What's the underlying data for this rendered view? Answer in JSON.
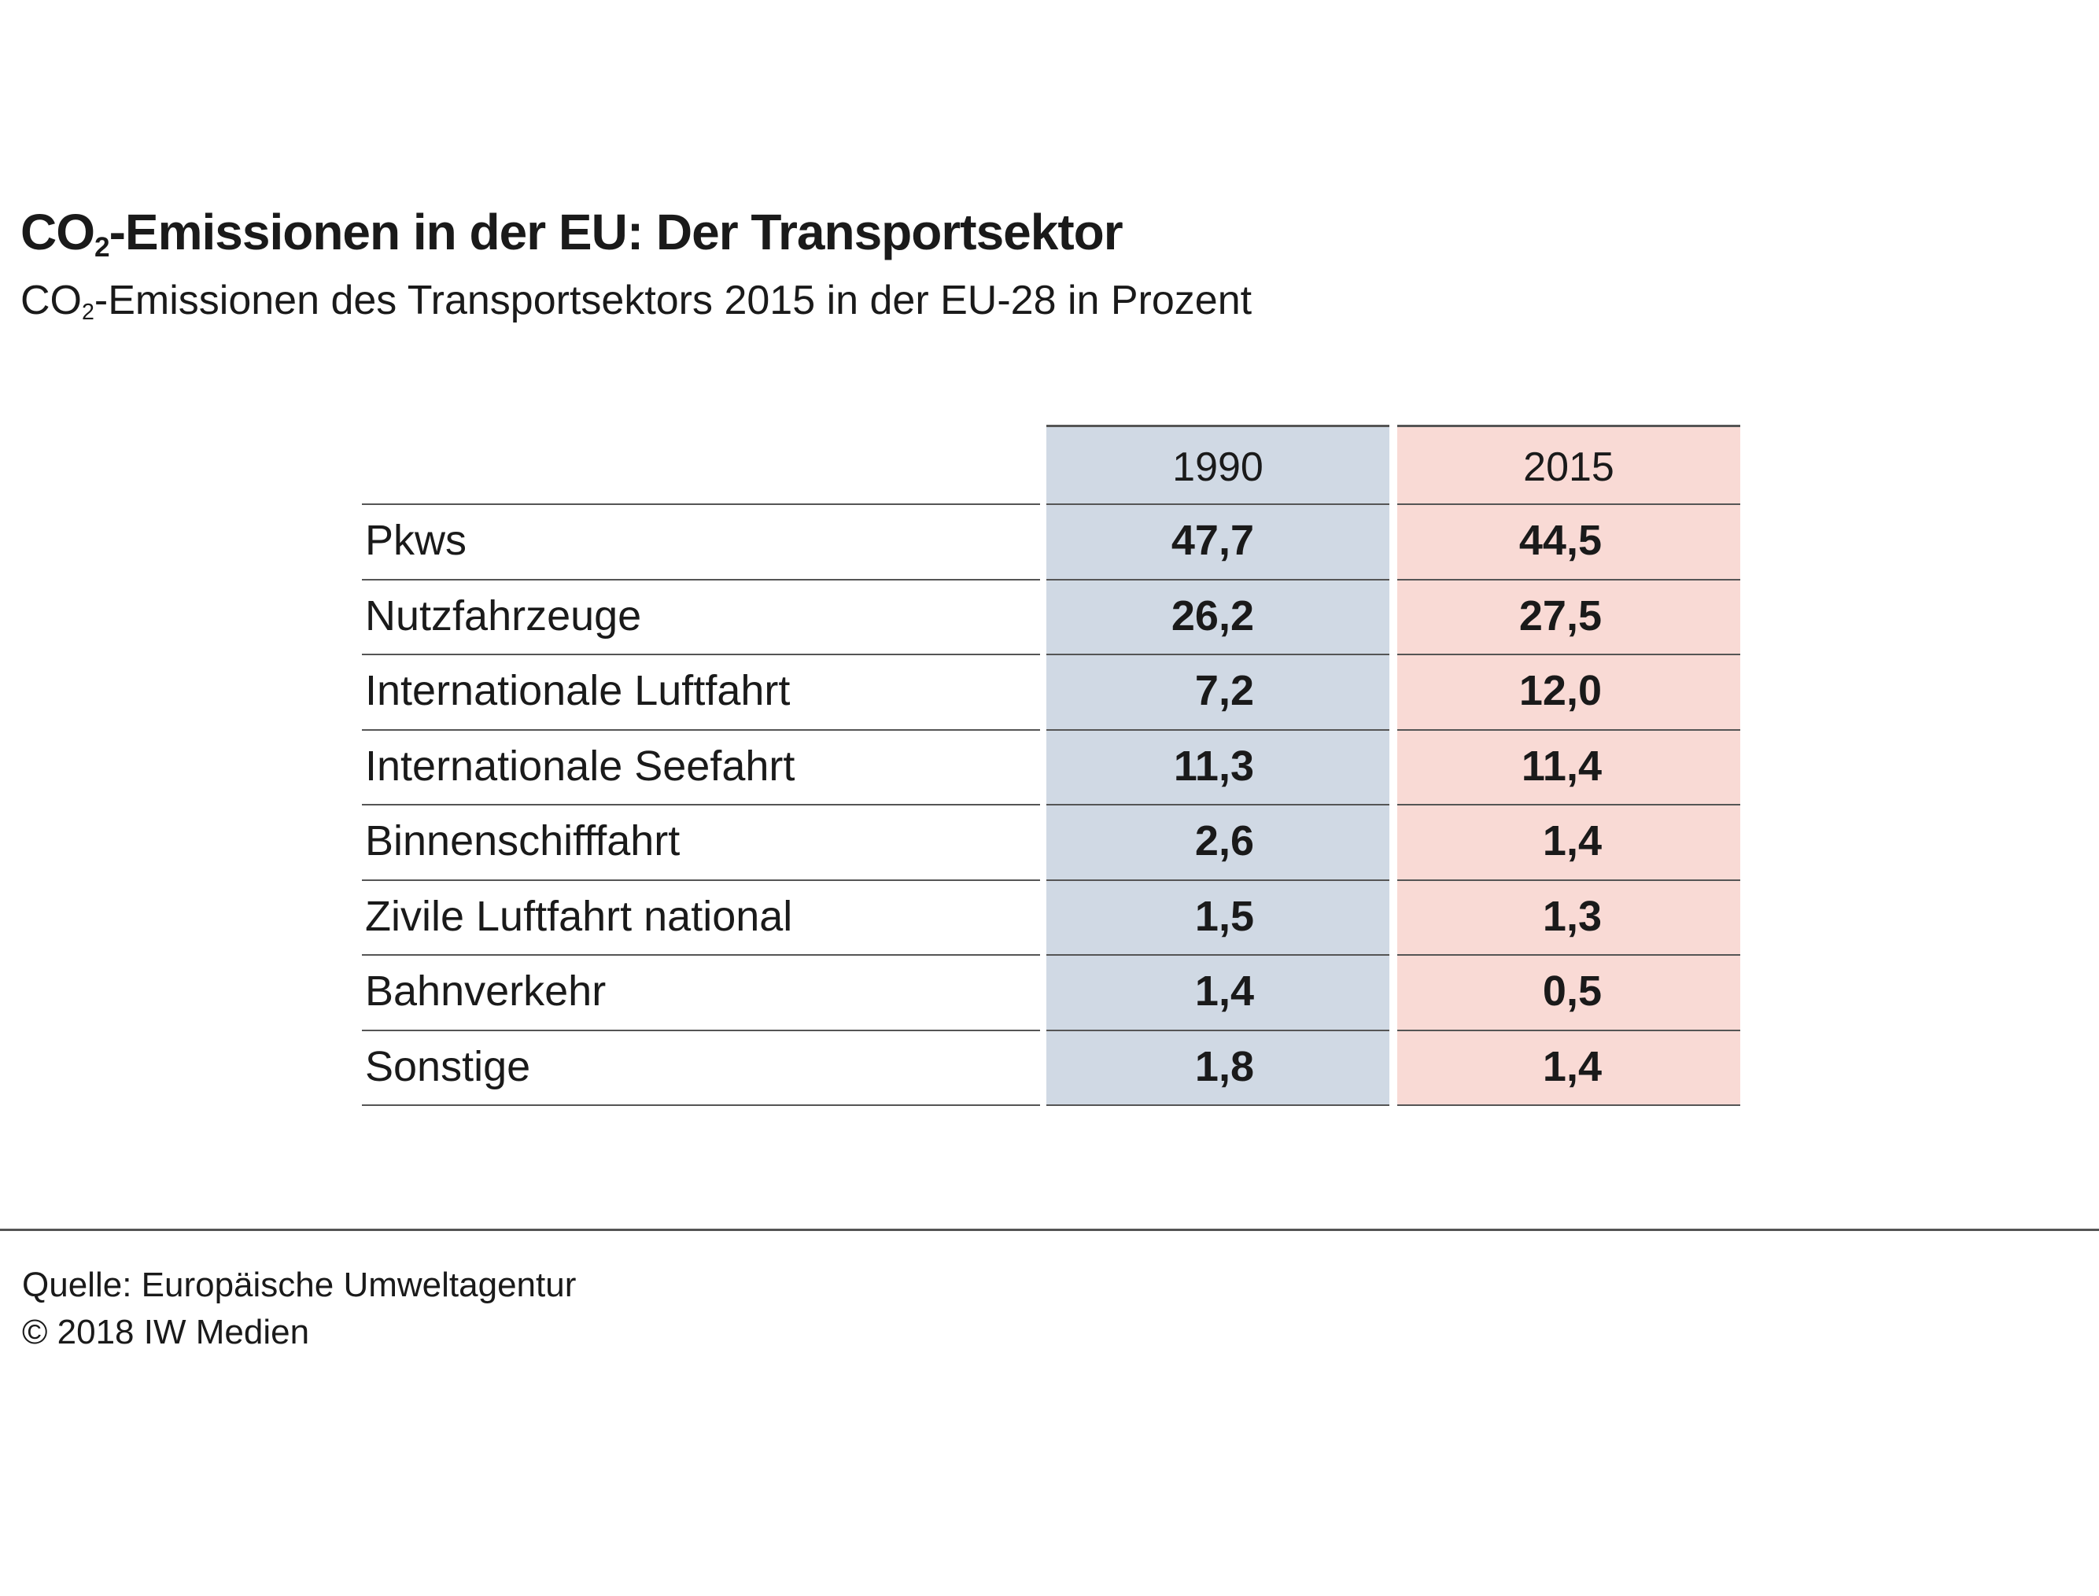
{
  "header": {
    "title_prefix": "CO",
    "title_sub": "2",
    "title_rest": "-Emissionen in der EU: Der Transportsektor",
    "subtitle_prefix": "CO",
    "subtitle_sub": "2",
    "subtitle_rest": "-Emissionen des Transportsektors 2015 in der EU-28 in Prozent"
  },
  "colors": {
    "col_1990": "#d0d9e4",
    "col_2015": "#f9dad5"
  },
  "chart_data": {
    "type": "table",
    "columns": [
      "1990",
      "2015"
    ],
    "rows": [
      {
        "label": "Pkws",
        "values": [
          "47,7",
          "44,5"
        ]
      },
      {
        "label": "Nutzfahrzeuge",
        "values": [
          "26,2",
          "27,5"
        ]
      },
      {
        "label": "Internationale Luftfahrt",
        "values": [
          "7,2",
          "12,0"
        ]
      },
      {
        "label": "Internationale Seefahrt",
        "values": [
          "11,3",
          "11,4"
        ]
      },
      {
        "label": "Binnenschifffahrt",
        "values": [
          "2,6",
          "1,4"
        ]
      },
      {
        "label": "Zivile Luftfahrt national",
        "values": [
          "1,5",
          "1,3"
        ]
      },
      {
        "label": "Bahnverkehr",
        "values": [
          "1,4",
          "0,5"
        ]
      },
      {
        "label": "Sonstige",
        "values": [
          "1,8",
          "1,4"
        ]
      }
    ]
  },
  "footer": {
    "source": "Quelle: Europäische Umweltagentur",
    "copyright": "© 2018 IW Medien"
  }
}
